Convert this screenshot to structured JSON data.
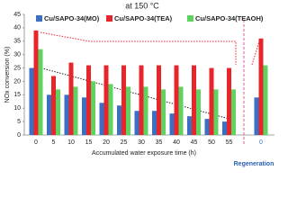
{
  "chart_data": {
    "type": "bar",
    "title": "at 150 °C",
    "x_label": "Accumulated water exposure time (h)",
    "y_label": "NOx conversion (%)",
    "annotation": "Regeneration",
    "categories": [
      "0",
      "5",
      "10",
      "15",
      "20",
      "25",
      "30",
      "35",
      "40",
      "45",
      "50",
      "55",
      "0"
    ],
    "series": [
      {
        "name": "Cu/SAPO-34(MO)",
        "color": "#3a6fc4",
        "values": [
          25,
          15,
          15,
          14,
          12,
          11,
          9,
          9,
          8,
          7,
          6,
          5,
          14
        ]
      },
      {
        "name": "Cu/SAPO-34(TEA)",
        "color": "#e8252b",
        "values": [
          39,
          22,
          27,
          26,
          26,
          26,
          26,
          26,
          26,
          26,
          25,
          25,
          36
        ]
      },
      {
        "name": "Cu/SAPO-34(TEAOH)",
        "color": "#5fd35f",
        "values": [
          32,
          17,
          18,
          20,
          19,
          18,
          18,
          17,
          18,
          17,
          17,
          17,
          26
        ]
      }
    ],
    "ylim": [
      0,
      45
    ],
    "yticks": [
      0,
      5,
      10,
      15,
      20,
      25,
      30,
      35,
      40,
      45
    ]
  }
}
